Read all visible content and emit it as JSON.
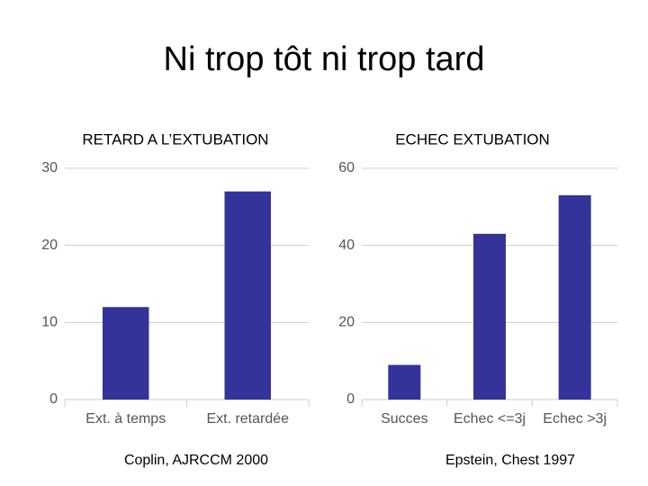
{
  "title": "Ni trop tôt ni trop tard",
  "chart_data": [
    {
      "type": "bar",
      "title": "RETARD A L’EXTUBATION",
      "source": "Coplin, AJRCCM 2000",
      "categories": [
        "Ext. à temps",
        "Ext. retardée"
      ],
      "values": [
        12,
        27
      ],
      "color": "#333399",
      "ylim": [
        0,
        30
      ],
      "yticks": [
        0,
        10,
        20,
        30
      ],
      "grid": true
    },
    {
      "type": "bar",
      "title": "ECHEC EXTUBATION",
      "source": "Epstein, Chest 1997",
      "categories": [
        "Succes",
        "Echec <=3j",
        "Echec >3j"
      ],
      "values": [
        9,
        43,
        53
      ],
      "color": "#333399",
      "ylim": [
        0,
        60
      ],
      "yticks": [
        0,
        20,
        40,
        60
      ],
      "grid": true
    }
  ]
}
